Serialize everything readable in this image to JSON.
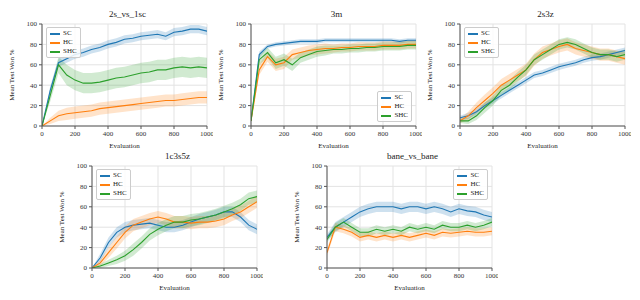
{
  "chart_data": [
    {
      "type": "line",
      "title": "2s_vs_1sc",
      "x_label": "Evaluation",
      "y_label": "Mean Test Won %",
      "x": [
        0,
        50,
        100,
        150,
        200,
        250,
        300,
        350,
        400,
        450,
        500,
        550,
        600,
        650,
        700,
        750,
        800,
        850,
        900,
        950,
        1000
      ],
      "xlim": [
        0,
        1000
      ],
      "xticks": [
        0,
        200,
        400,
        600,
        800,
        1000
      ],
      "ylim": [
        0,
        100
      ],
      "yticks": [
        0,
        20,
        40,
        60,
        80,
        100
      ],
      "grid": true,
      "legend": "upper left",
      "series": [
        {
          "name": "SC",
          "color": "#1f77b4",
          "values": [
            0,
            35,
            62,
            66,
            70,
            72,
            75,
            77,
            80,
            82,
            85,
            86,
            88,
            89,
            90,
            88,
            92,
            93,
            95,
            95,
            93
          ],
          "error": [
            0,
            4,
            4,
            4,
            4,
            4,
            4,
            4,
            4,
            4,
            4,
            4,
            4,
            4,
            4,
            4,
            4,
            4,
            4,
            4,
            4
          ]
        },
        {
          "name": "HC",
          "color": "#ff7f0e",
          "values": [
            0,
            5,
            10,
            12,
            13,
            14,
            15,
            17,
            18,
            19,
            20,
            21,
            22,
            23,
            24,
            25,
            25,
            26,
            27,
            28,
            28
          ],
          "error": [
            0,
            3,
            5,
            6,
            6,
            6,
            6,
            6,
            6,
            6,
            6,
            6,
            6,
            6,
            6,
            6,
            6,
            6,
            6,
            6,
            6
          ]
        },
        {
          "name": "SHC",
          "color": "#2ca02c",
          "values": [
            0,
            30,
            60,
            50,
            45,
            42,
            42,
            43,
            45,
            47,
            48,
            50,
            52,
            53,
            55,
            55,
            57,
            58,
            57,
            58,
            57
          ],
          "error": [
            0,
            6,
            8,
            10,
            10,
            10,
            10,
            10,
            10,
            10,
            10,
            10,
            10,
            10,
            10,
            10,
            10,
            10,
            10,
            10,
            10
          ]
        }
      ]
    },
    {
      "type": "line",
      "title": "3m",
      "x_label": "Evaluation",
      "y_label": "Mean Test Won %",
      "x": [
        0,
        50,
        100,
        150,
        200,
        250,
        300,
        350,
        400,
        450,
        500,
        550,
        600,
        650,
        700,
        750,
        800,
        850,
        900,
        950,
        1000
      ],
      "xlim": [
        0,
        1000
      ],
      "xticks": [
        0,
        200,
        400,
        600,
        800,
        1000
      ],
      "ylim": [
        0,
        100
      ],
      "yticks": [
        0,
        20,
        40,
        60,
        80,
        100
      ],
      "grid": true,
      "legend": "lower right",
      "series": [
        {
          "name": "SC",
          "color": "#1f77b4",
          "values": [
            5,
            70,
            78,
            80,
            81,
            82,
            83,
            83,
            83,
            84,
            84,
            84,
            84,
            84,
            84,
            84,
            84,
            84,
            83,
            84,
            84
          ],
          "error": [
            1,
            3,
            2,
            2,
            2,
            2,
            2,
            2,
            2,
            2,
            2,
            2,
            2,
            2,
            2,
            2,
            2,
            2,
            2,
            2,
            2
          ]
        },
        {
          "name": "HC",
          "color": "#ff7f0e",
          "values": [
            5,
            55,
            68,
            60,
            62,
            70,
            72,
            74,
            75,
            76,
            76,
            77,
            77,
            78,
            78,
            78,
            79,
            79,
            79,
            80,
            80
          ],
          "error": [
            1,
            5,
            5,
            6,
            6,
            5,
            5,
            5,
            5,
            5,
            4,
            4,
            4,
            4,
            4,
            4,
            4,
            4,
            4,
            4,
            4
          ]
        },
        {
          "name": "SHC",
          "color": "#2ca02c",
          "values": [
            5,
            65,
            72,
            62,
            65,
            60,
            67,
            70,
            73,
            74,
            75,
            75,
            76,
            76,
            77,
            77,
            78,
            78,
            78,
            79,
            79
          ],
          "error": [
            1,
            5,
            5,
            6,
            6,
            6,
            5,
            5,
            5,
            5,
            4,
            4,
            4,
            4,
            4,
            4,
            4,
            4,
            4,
            4,
            4
          ]
        }
      ]
    },
    {
      "type": "line",
      "title": "2s3z",
      "x_label": "Evaluation",
      "y_label": "Mean Test Won %",
      "x": [
        0,
        50,
        100,
        150,
        200,
        250,
        300,
        350,
        400,
        450,
        500,
        550,
        600,
        650,
        700,
        750,
        800,
        850,
        900,
        950,
        1000
      ],
      "xlim": [
        0,
        1000
      ],
      "xticks": [
        0,
        200,
        400,
        600,
        800,
        1000
      ],
      "ylim": [
        0,
        100
      ],
      "yticks": [
        0,
        20,
        40,
        60,
        80,
        100
      ],
      "grid": true,
      "legend": "upper left",
      "series": [
        {
          "name": "SC",
          "color": "#1f77b4",
          "values": [
            8,
            10,
            14,
            20,
            25,
            30,
            35,
            40,
            45,
            50,
            52,
            55,
            58,
            60,
            62,
            65,
            67,
            68,
            70,
            72,
            74
          ],
          "error": [
            2,
            3,
            3,
            3,
            3,
            3,
            3,
            3,
            3,
            3,
            3,
            3,
            3,
            3,
            3,
            3,
            3,
            3,
            3,
            3,
            3
          ]
        },
        {
          "name": "HC",
          "color": "#ff7f0e",
          "values": [
            5,
            10,
            18,
            25,
            32,
            40,
            45,
            50,
            55,
            65,
            72,
            75,
            78,
            80,
            76,
            74,
            72,
            70,
            70,
            68,
            66
          ],
          "error": [
            2,
            4,
            5,
            6,
            6,
            6,
            6,
            6,
            6,
            6,
            6,
            6,
            6,
            6,
            6,
            6,
            6,
            6,
            6,
            6,
            6
          ]
        },
        {
          "name": "SHC",
          "color": "#2ca02c",
          "values": [
            5,
            5,
            10,
            18,
            25,
            35,
            40,
            48,
            55,
            65,
            70,
            75,
            80,
            82,
            80,
            76,
            72,
            70,
            70,
            68,
            70
          ],
          "error": [
            2,
            3,
            4,
            5,
            5,
            5,
            5,
            5,
            5,
            5,
            5,
            5,
            5,
            5,
            5,
            5,
            5,
            5,
            5,
            5,
            5
          ]
        }
      ]
    },
    {
      "type": "line",
      "title": "1c3s5z",
      "x_label": "Evaluation",
      "y_label": "Mean Test Won %",
      "x": [
        0,
        50,
        100,
        150,
        200,
        250,
        300,
        350,
        400,
        450,
        500,
        550,
        600,
        650,
        700,
        750,
        800,
        850,
        900,
        950,
        1000
      ],
      "xlim": [
        0,
        1000
      ],
      "xticks": [
        0,
        200,
        400,
        600,
        800,
        1000
      ],
      "ylim": [
        0,
        100
      ],
      "yticks": [
        0,
        20,
        40,
        60,
        80,
        100
      ],
      "grid": true,
      "legend": "upper left",
      "series": [
        {
          "name": "SC",
          "color": "#1f77b4",
          "values": [
            0,
            10,
            25,
            35,
            40,
            42,
            43,
            44,
            42,
            40,
            40,
            42,
            45,
            48,
            50,
            52,
            55,
            55,
            50,
            42,
            38
          ],
          "error": [
            0,
            4,
            5,
            5,
            5,
            5,
            5,
            5,
            5,
            5,
            5,
            5,
            5,
            5,
            5,
            5,
            5,
            5,
            5,
            5,
            5
          ]
        },
        {
          "name": "HC",
          "color": "#ff7f0e",
          "values": [
            0,
            5,
            15,
            25,
            35,
            42,
            45,
            48,
            50,
            48,
            45,
            45,
            44,
            45,
            45,
            46,
            48,
            52,
            55,
            60,
            65
          ],
          "error": [
            0,
            3,
            5,
            6,
            6,
            6,
            6,
            6,
            6,
            6,
            6,
            6,
            6,
            6,
            6,
            6,
            6,
            6,
            6,
            6,
            6
          ]
        },
        {
          "name": "SHC",
          "color": "#2ca02c",
          "values": [
            0,
            2,
            5,
            8,
            12,
            18,
            25,
            33,
            38,
            42,
            45,
            45,
            47,
            48,
            50,
            52,
            55,
            58,
            62,
            68,
            70
          ],
          "error": [
            0,
            2,
            3,
            4,
            5,
            6,
            6,
            6,
            6,
            6,
            6,
            6,
            6,
            6,
            6,
            6,
            6,
            6,
            6,
            6,
            6
          ]
        }
      ]
    },
    {
      "type": "line",
      "title": "bane_vs_bane",
      "x_label": "Evaluation",
      "y_label": "Mean Test Won %",
      "x": [
        0,
        50,
        100,
        150,
        200,
        250,
        300,
        350,
        400,
        450,
        500,
        550,
        600,
        650,
        700,
        750,
        800,
        850,
        900,
        950,
        1000
      ],
      "xlim": [
        0,
        1000
      ],
      "xticks": [
        0,
        200,
        400,
        600,
        800,
        1000
      ],
      "ylim": [
        0,
        100
      ],
      "yticks": [
        0,
        20,
        40,
        60,
        80,
        100
      ],
      "grid": true,
      "legend": "upper right",
      "series": [
        {
          "name": "SC",
          "color": "#1f77b4",
          "values": [
            30,
            40,
            45,
            50,
            55,
            58,
            60,
            60,
            60,
            58,
            60,
            60,
            58,
            60,
            58,
            55,
            58,
            56,
            55,
            52,
            50
          ],
          "error": [
            3,
            5,
            5,
            5,
            5,
            5,
            5,
            5,
            5,
            5,
            5,
            5,
            5,
            5,
            5,
            5,
            5,
            5,
            5,
            5,
            5
          ]
        },
        {
          "name": "HC",
          "color": "#ff7f0e",
          "values": [
            15,
            40,
            38,
            35,
            30,
            32,
            30,
            32,
            30,
            32,
            30,
            32,
            34,
            32,
            35,
            34,
            35,
            36,
            35,
            35,
            36
          ],
          "error": [
            3,
            4,
            4,
            4,
            4,
            4,
            4,
            4,
            4,
            4,
            4,
            4,
            4,
            4,
            4,
            4,
            4,
            4,
            4,
            4,
            4
          ]
        },
        {
          "name": "SHC",
          "color": "#2ca02c",
          "values": [
            28,
            40,
            45,
            40,
            35,
            35,
            38,
            36,
            38,
            36,
            40,
            38,
            40,
            38,
            42,
            40,
            40,
            42,
            40,
            42,
            45
          ],
          "error": [
            3,
            4,
            4,
            4,
            4,
            4,
            4,
            4,
            4,
            4,
            4,
            4,
            4,
            4,
            4,
            4,
            4,
            4,
            4,
            4,
            4
          ]
        }
      ]
    }
  ]
}
